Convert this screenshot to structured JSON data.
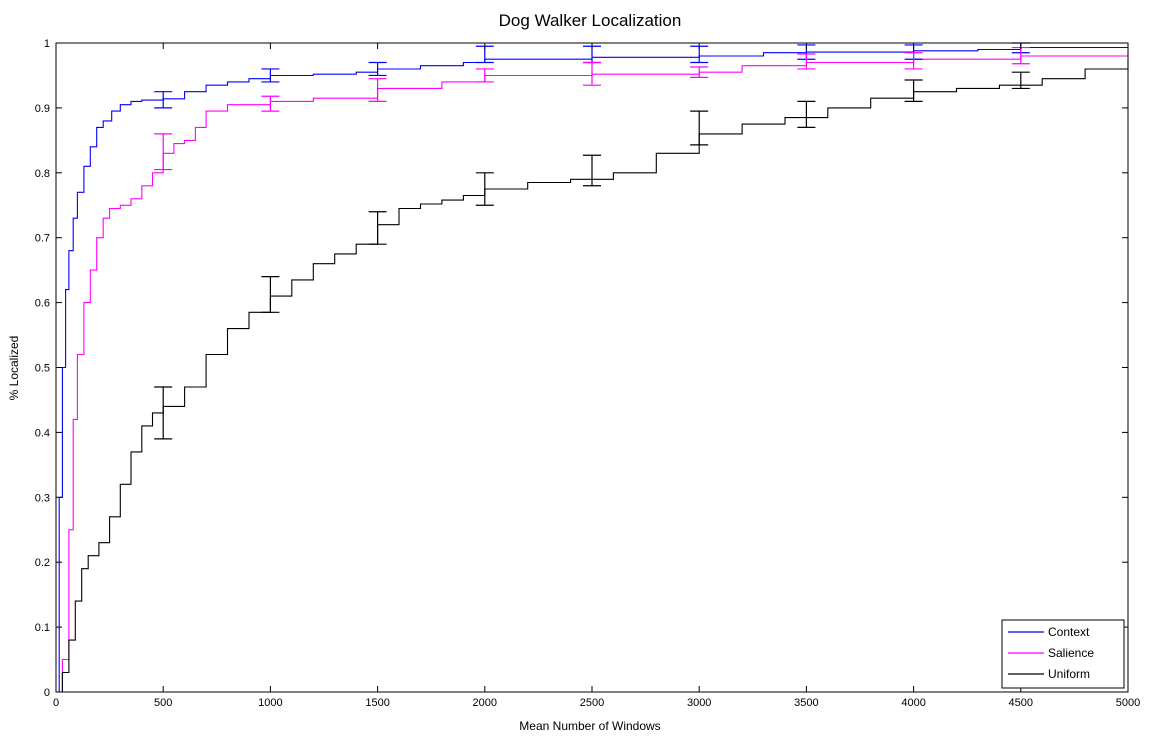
{
  "chart_data": {
    "type": "line",
    "title": "Dog Walker Localization",
    "xlabel": "Mean Number of Windows",
    "ylabel": "% Localized",
    "xlim": [
      0,
      5000
    ],
    "ylim": [
      0,
      1
    ],
    "x_ticks": [
      0,
      500,
      1000,
      1500,
      2000,
      2500,
      3000,
      3500,
      4000,
      4500,
      5000
    ],
    "y_ticks": [
      0,
      0.1,
      0.2,
      0.3,
      0.4,
      0.5,
      0.6,
      0.7,
      0.8,
      0.9,
      1
    ],
    "y_tick_labels": [
      "0",
      "0.1",
      "0.2",
      "0.3",
      "0.4",
      "0.5",
      "0.6",
      "0.7",
      "0.8",
      "0.9",
      "1"
    ],
    "grid": false,
    "legend_position": "bottom-right",
    "series": [
      {
        "name": "Context",
        "color": "#0000ff",
        "x": [
          0,
          15,
          30,
          45,
          60,
          80,
          100,
          130,
          160,
          190,
          220,
          260,
          300,
          350,
          400,
          500,
          600,
          700,
          800,
          900,
          1000,
          1200,
          1400,
          1500,
          1700,
          1900,
          2000,
          2500,
          3000,
          3300,
          3500,
          4000,
          4300,
          4500,
          5000
        ],
        "y": [
          0,
          0.3,
          0.5,
          0.62,
          0.68,
          0.73,
          0.77,
          0.81,
          0.84,
          0.87,
          0.88,
          0.895,
          0.905,
          0.91,
          0.912,
          0.914,
          0.925,
          0.935,
          0.94,
          0.945,
          0.95,
          0.952,
          0.955,
          0.96,
          0.965,
          0.97,
          0.975,
          0.978,
          0.98,
          0.985,
          0.986,
          0.988,
          0.99,
          0.993,
          0.995
        ],
        "error_bars": [
          {
            "x": 500,
            "low": 0.9,
            "high": 0.925
          },
          {
            "x": 1000,
            "low": 0.94,
            "high": 0.96
          },
          {
            "x": 1500,
            "low": 0.95,
            "high": 0.97
          },
          {
            "x": 2000,
            "low": 0.97,
            "high": 0.995
          },
          {
            "x": 2500,
            "low": 0.97,
            "high": 0.995
          },
          {
            "x": 3000,
            "low": 0.97,
            "high": 0.995
          },
          {
            "x": 3500,
            "low": 0.975,
            "high": 0.997
          },
          {
            "x": 4000,
            "low": 0.975,
            "high": 0.997
          },
          {
            "x": 4500,
            "low": 0.985,
            "high": 1.0
          }
        ]
      },
      {
        "name": "Salience",
        "color": "#ff00ff",
        "x": [
          0,
          30,
          60,
          80,
          100,
          130,
          160,
          190,
          220,
          250,
          300,
          350,
          400,
          450,
          500,
          550,
          600,
          650,
          700,
          800,
          1000,
          1200,
          1500,
          1800,
          2000,
          2500,
          3000,
          3200,
          3500,
          4000,
          4500,
          5000
        ],
        "y": [
          0,
          0.05,
          0.25,
          0.42,
          0.52,
          0.6,
          0.65,
          0.7,
          0.73,
          0.745,
          0.75,
          0.76,
          0.78,
          0.8,
          0.83,
          0.845,
          0.85,
          0.87,
          0.895,
          0.905,
          0.91,
          0.915,
          0.93,
          0.94,
          0.95,
          0.952,
          0.955,
          0.965,
          0.97,
          0.975,
          0.98,
          0.985
        ],
        "error_bars": [
          {
            "x": 500,
            "low": 0.805,
            "high": 0.86
          },
          {
            "x": 1000,
            "low": 0.895,
            "high": 0.918
          },
          {
            "x": 1500,
            "low": 0.91,
            "high": 0.945
          },
          {
            "x": 2000,
            "low": 0.94,
            "high": 0.96
          },
          {
            "x": 2500,
            "low": 0.935,
            "high": 0.97
          },
          {
            "x": 3000,
            "low": 0.947,
            "high": 0.963
          },
          {
            "x": 3500,
            "low": 0.96,
            "high": 0.983
          },
          {
            "x": 4000,
            "low": 0.96,
            "high": 0.985
          },
          {
            "x": 4500,
            "low": 0.968,
            "high": 0.993
          }
        ]
      },
      {
        "name": "Uniform",
        "color": "#000000",
        "x": [
          0,
          30,
          60,
          90,
          120,
          150,
          200,
          250,
          300,
          350,
          400,
          450,
          500,
          600,
          700,
          800,
          900,
          1000,
          1100,
          1200,
          1300,
          1400,
          1500,
          1600,
          1700,
          1800,
          1900,
          2000,
          2200,
          2400,
          2600,
          2800,
          3000,
          3200,
          3400,
          3600,
          3800,
          4000,
          4200,
          4400,
          4600,
          4800,
          5000
        ],
        "y": [
          0,
          0.03,
          0.08,
          0.14,
          0.19,
          0.21,
          0.23,
          0.27,
          0.32,
          0.37,
          0.41,
          0.43,
          0.44,
          0.47,
          0.52,
          0.56,
          0.585,
          0.61,
          0.635,
          0.66,
          0.675,
          0.69,
          0.72,
          0.745,
          0.752,
          0.758,
          0.765,
          0.775,
          0.785,
          0.79,
          0.8,
          0.83,
          0.86,
          0.875,
          0.885,
          0.9,
          0.915,
          0.925,
          0.93,
          0.935,
          0.945,
          0.96,
          0.975
        ],
        "error_bars": [
          {
            "x": 500,
            "low": 0.39,
            "high": 0.47
          },
          {
            "x": 1000,
            "low": 0.585,
            "high": 0.64
          },
          {
            "x": 1500,
            "low": 0.69,
            "high": 0.74
          },
          {
            "x": 2000,
            "low": 0.75,
            "high": 0.8
          },
          {
            "x": 2500,
            "low": 0.78,
            "high": 0.827
          },
          {
            "x": 3000,
            "low": 0.843,
            "high": 0.895
          },
          {
            "x": 3500,
            "low": 0.87,
            "high": 0.91
          },
          {
            "x": 4000,
            "low": 0.91,
            "high": 0.943
          },
          {
            "x": 4500,
            "low": 0.93,
            "high": 0.955
          }
        ]
      }
    ]
  }
}
